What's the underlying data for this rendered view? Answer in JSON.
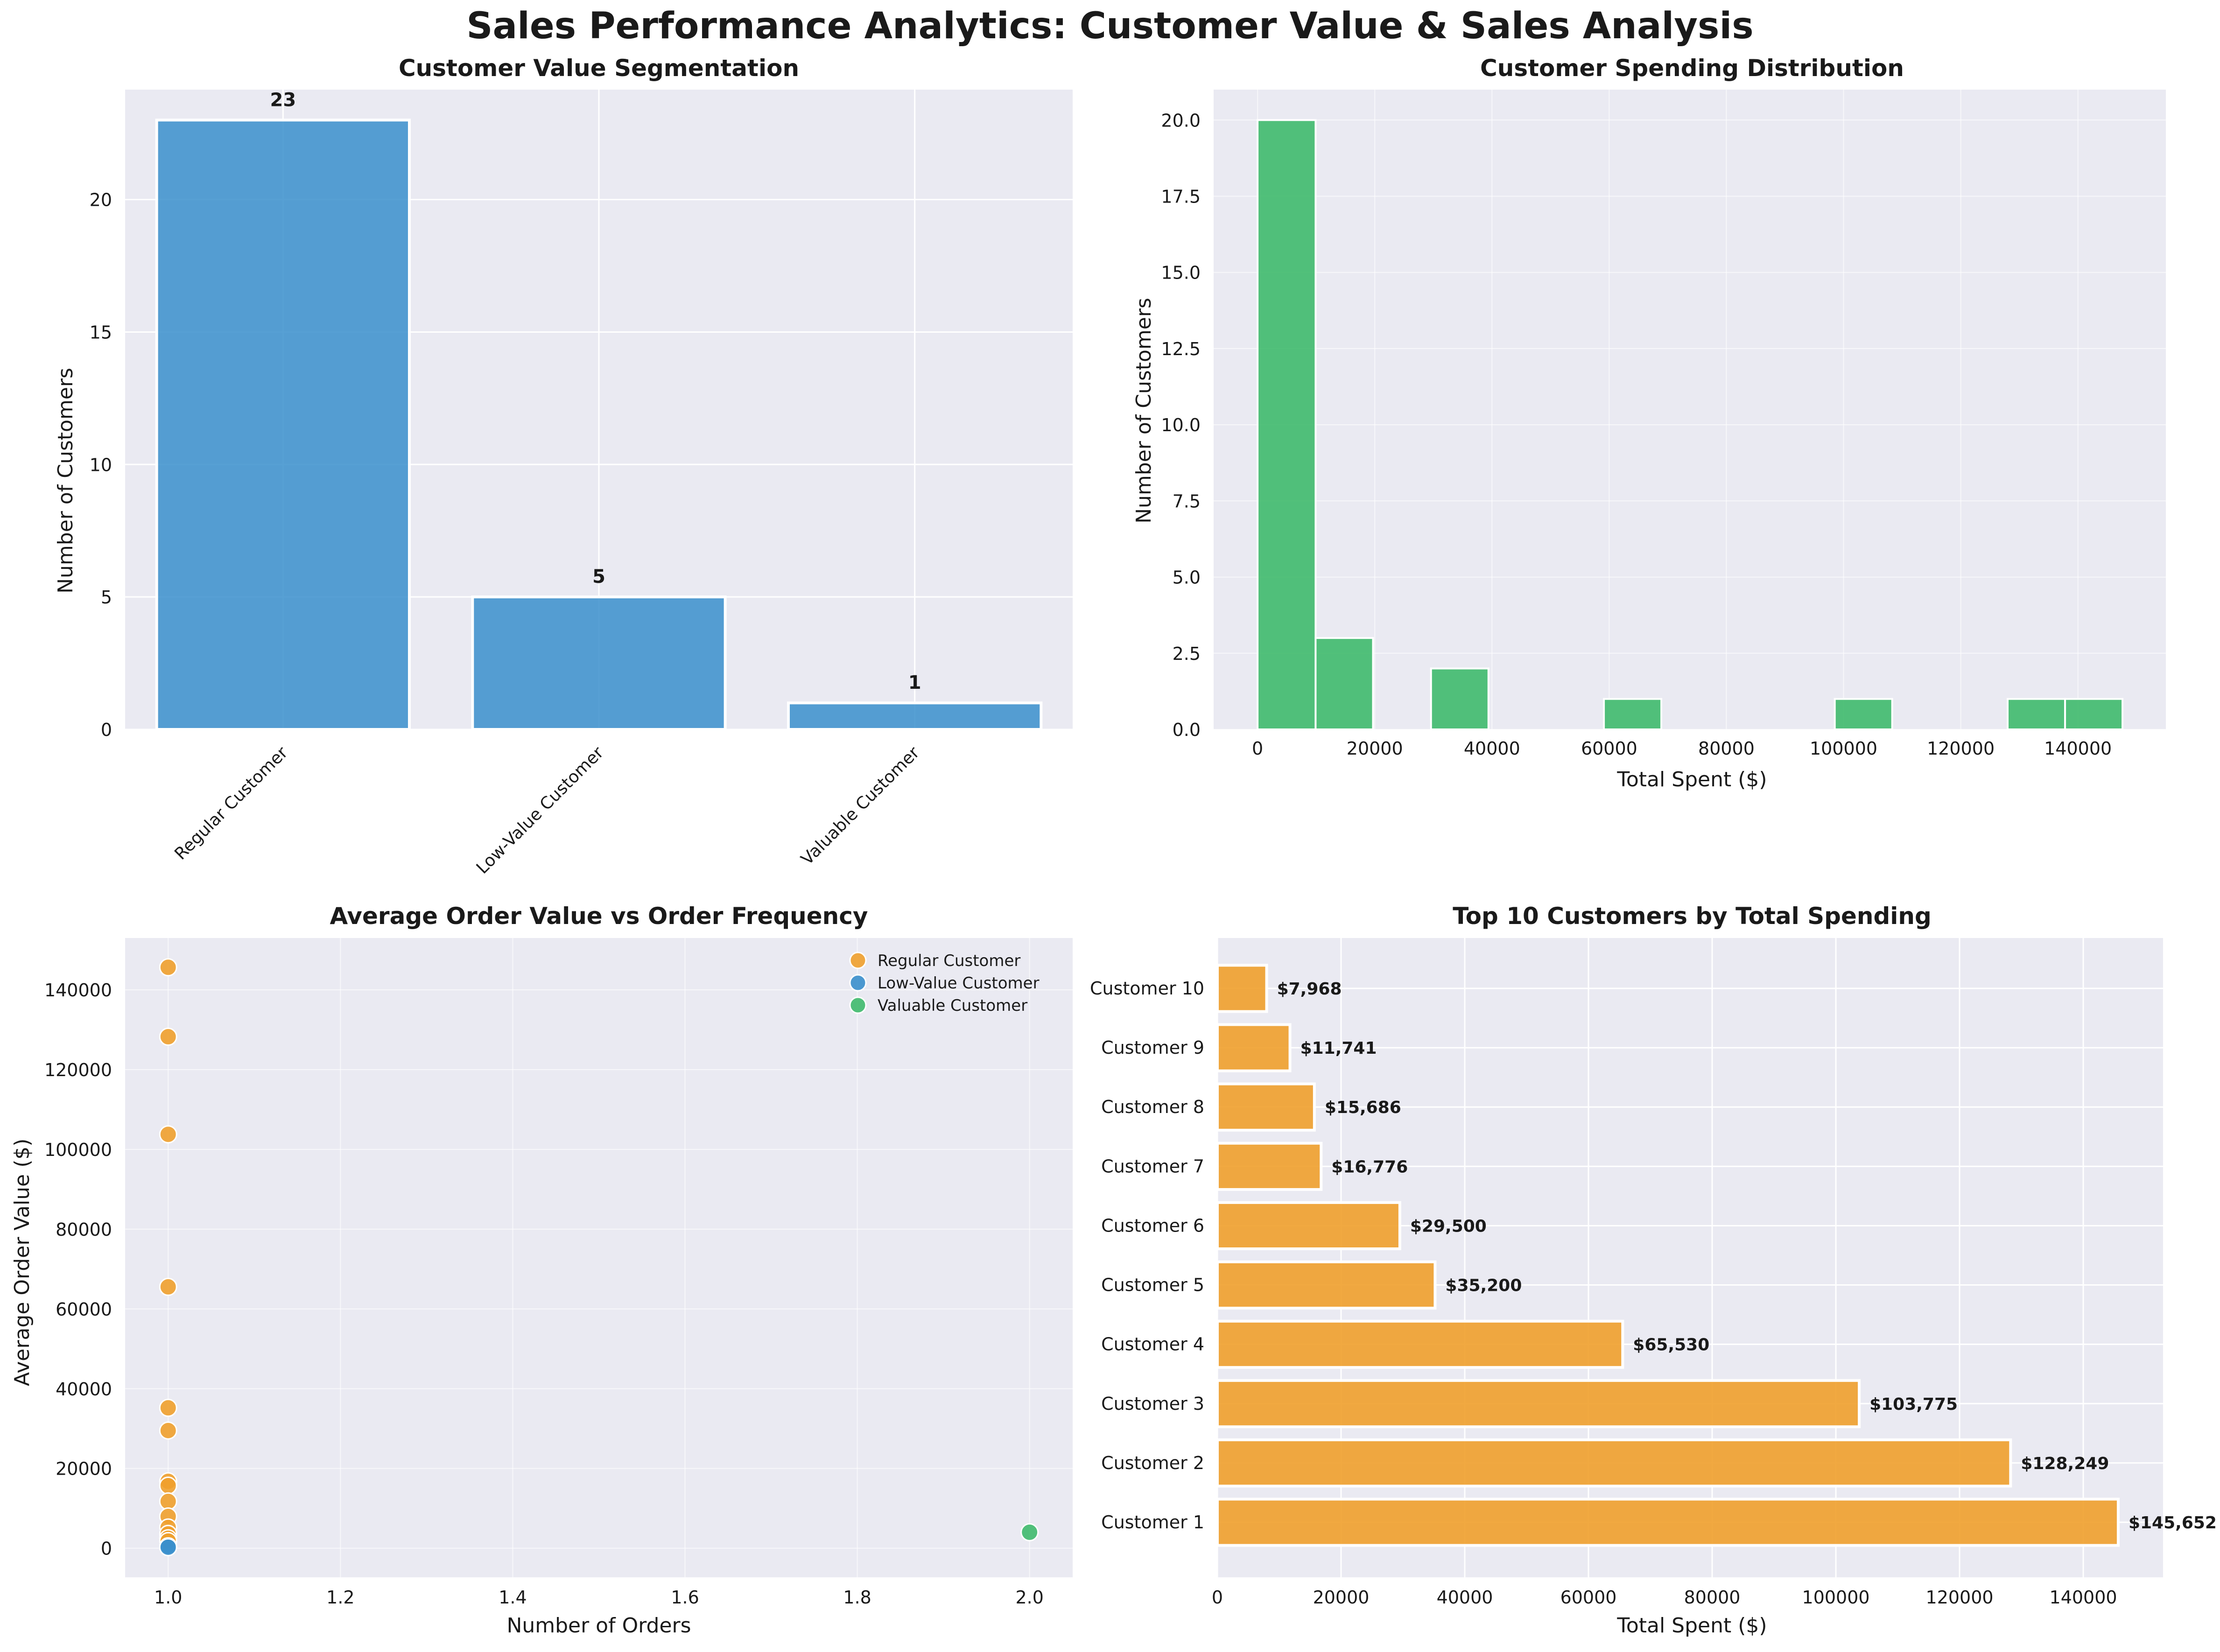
{
  "figure": {
    "title": "Sales Performance Analytics: Customer Value & Sales Analysis"
  },
  "colors": {
    "blue": "#3a8fcc",
    "green": "#3fba6d",
    "orange": "#f0a02c",
    "plot_bg": "#eaeaf2",
    "grid": "#ffffff",
    "text": "#1a1a1a"
  },
  "chart_data": [
    {
      "type": "bar",
      "title": "Customer Value Segmentation",
      "xlabel": "",
      "ylabel": "Number of Customers",
      "categories": [
        "Regular Customer",
        "Low-Value Customer",
        "Valuable Customer"
      ],
      "values": [
        23,
        5,
        1
      ],
      "data_labels": [
        "23",
        "5",
        "1"
      ],
      "ylim": [
        0,
        24.15
      ],
      "yticks": [
        0,
        5,
        10,
        15,
        20
      ],
      "ytick_labels": [
        "0",
        "5",
        "10",
        "15",
        "20"
      ],
      "grid": true,
      "color": "#3a8fcc"
    },
    {
      "type": "bar",
      "subtype": "histogram",
      "title": "Customer Spending Distribution",
      "xlabel": "Total Spent ($)",
      "ylabel": "Number of Customers",
      "bins": [
        {
          "x0": 0,
          "x1": 9900,
          "count": 20
        },
        {
          "x0": 9900,
          "x1": 19700,
          "count": 3
        },
        {
          "x0": 29600,
          "x1": 39400,
          "count": 2
        },
        {
          "x0": 59100,
          "x1": 68900,
          "count": 1
        },
        {
          "x0": 98500,
          "x1": 108300,
          "count": 1
        },
        {
          "x0": 128000,
          "x1": 137800,
          "count": 1
        },
        {
          "x0": 137800,
          "x1": 147600,
          "count": 1
        }
      ],
      "xlim": [
        -7500,
        155000
      ],
      "ylim": [
        0,
        21
      ],
      "xticks": [
        0,
        20000,
        40000,
        60000,
        80000,
        100000,
        120000,
        140000
      ],
      "xtick_labels": [
        "0",
        "20000",
        "40000",
        "60000",
        "80000",
        "100000",
        "120000",
        "140000"
      ],
      "yticks": [
        0,
        2.5,
        5,
        7.5,
        10,
        12.5,
        15,
        17.5,
        20
      ],
      "ytick_labels": [
        "0.0",
        "2.5",
        "5.0",
        "7.5",
        "10.0",
        "12.5",
        "15.0",
        "17.5",
        "20.0"
      ],
      "grid": true,
      "color": "#3fba6d"
    },
    {
      "type": "scatter",
      "title": "Average Order Value vs Order Frequency",
      "xlabel": "Number of Orders",
      "ylabel": "Average Order Value ($)",
      "xlim": [
        0.95,
        2.05
      ],
      "ylim": [
        -7300,
        153000
      ],
      "xticks": [
        1.0,
        1.2,
        1.4,
        1.6,
        1.8,
        2.0
      ],
      "xtick_labels": [
        "1.0",
        "1.2",
        "1.4",
        "1.6",
        "1.8",
        "2.0"
      ],
      "yticks": [
        0,
        20000,
        40000,
        60000,
        80000,
        100000,
        120000,
        140000
      ],
      "ytick_labels": [
        "0",
        "20000",
        "40000",
        "60000",
        "80000",
        "100000",
        "120000",
        "140000"
      ],
      "legend_position": "top-right",
      "grid": true,
      "series": [
        {
          "name": "Regular Customer",
          "color": "#f0a02c",
          "points": [
            {
              "x": 1,
              "y": 145652
            },
            {
              "x": 1,
              "y": 128249
            },
            {
              "x": 1,
              "y": 103775
            },
            {
              "x": 1,
              "y": 65530
            },
            {
              "x": 1,
              "y": 35200
            },
            {
              "x": 1,
              "y": 29500
            },
            {
              "x": 1,
              "y": 16776
            },
            {
              "x": 1,
              "y": 15686
            },
            {
              "x": 1,
              "y": 11741
            },
            {
              "x": 1,
              "y": 7968
            },
            {
              "x": 1,
              "y": 5200
            },
            {
              "x": 1,
              "y": 3600
            },
            {
              "x": 1,
              "y": 2500
            },
            {
              "x": 1,
              "y": 1800
            }
          ]
        },
        {
          "name": "Low-Value Customer",
          "color": "#3a8fcc",
          "points": [
            {
              "x": 1,
              "y": 500
            },
            {
              "x": 1,
              "y": 250
            }
          ]
        },
        {
          "name": "Valuable Customer",
          "color": "#3fba6d",
          "points": [
            {
              "x": 2,
              "y": 4000
            }
          ]
        }
      ]
    },
    {
      "type": "bar",
      "orientation": "horizontal",
      "title": "Top 10 Customers by Total Spending",
      "xlabel": "Total Spent ($)",
      "ylabel": "",
      "categories": [
        "Customer 1",
        "Customer 2",
        "Customer 3",
        "Customer 4",
        "Customer 5",
        "Customer 6",
        "Customer 7",
        "Customer 8",
        "Customer 9",
        "Customer 10"
      ],
      "values": [
        145652,
        128249,
        103775,
        65530,
        35200,
        29500,
        16776,
        15686,
        11741,
        7968
      ],
      "data_labels": [
        "$145,652",
        "$128,249",
        "$103,775",
        "$65,530",
        "$35,200",
        "$29,500",
        "$16,776",
        "$15,686",
        "$11,741",
        "$7,968"
      ],
      "xlim": [
        0,
        152900
      ],
      "xticks": [
        0,
        20000,
        40000,
        60000,
        80000,
        100000,
        120000,
        140000
      ],
      "xtick_labels": [
        "0",
        "20000",
        "40000",
        "60000",
        "80000",
        "100000",
        "120000",
        "140000"
      ],
      "grid": true,
      "color": "#f0a02c"
    }
  ]
}
